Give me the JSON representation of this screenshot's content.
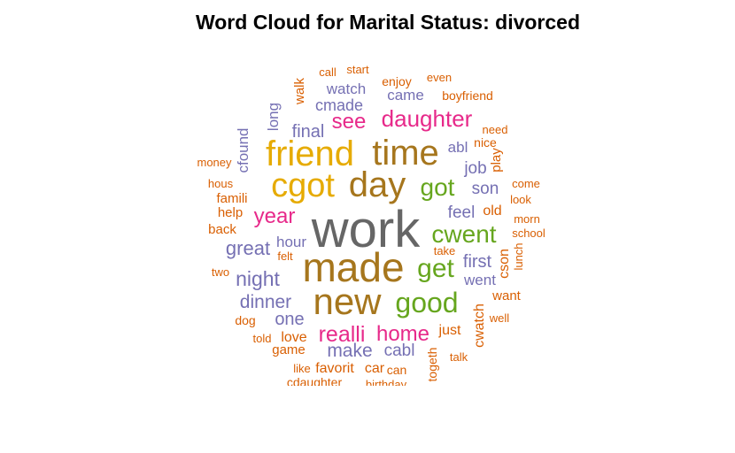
{
  "title": "Word Cloud for Marital Status: divorced",
  "colors": {
    "orange": "#D95F02",
    "purple": "#7570B3",
    "magenta": "#E7298A",
    "green": "#66A61E",
    "gold": "#E6AB02",
    "brown": "#A6761D",
    "gray": "#666666"
  },
  "chart_data": {
    "type": "wordcloud",
    "title": "Word Cloud for Marital Status: divorced",
    "words": [
      {
        "text": "work",
        "weight": 10,
        "color": "gray"
      },
      {
        "text": "made",
        "weight": 8.5,
        "color": "brown"
      },
      {
        "text": "new",
        "weight": 7.8,
        "color": "brown"
      },
      {
        "text": "day",
        "weight": 7,
        "color": "brown"
      },
      {
        "text": "time",
        "weight": 7,
        "color": "brown"
      },
      {
        "text": "friend",
        "weight": 7,
        "color": "gold"
      },
      {
        "text": "cgot",
        "weight": 7,
        "color": "gold"
      },
      {
        "text": "good",
        "weight": 5.7,
        "color": "green"
      },
      {
        "text": "cwent",
        "weight": 5.2,
        "color": "green"
      },
      {
        "text": "get",
        "weight": 5.2,
        "color": "green"
      },
      {
        "text": "got",
        "weight": 5,
        "color": "green"
      },
      {
        "text": "daughter",
        "weight": 4.7,
        "color": "magenta"
      },
      {
        "text": "realli",
        "weight": 4.5,
        "color": "magenta"
      },
      {
        "text": "home",
        "weight": 4.3,
        "color": "magenta"
      },
      {
        "text": "year",
        "weight": 4.3,
        "color": "magenta"
      },
      {
        "text": "see",
        "weight": 4,
        "color": "magenta"
      },
      {
        "text": "night",
        "weight": 4,
        "color": "purple"
      },
      {
        "text": "great",
        "weight": 4,
        "color": "purple"
      },
      {
        "text": "dinner",
        "weight": 3.7,
        "color": "purple"
      },
      {
        "text": "make",
        "weight": 3.7,
        "color": "purple"
      },
      {
        "text": "first",
        "weight": 3.5,
        "color": "purple"
      },
      {
        "text": "final",
        "weight": 3.5,
        "color": "purple"
      },
      {
        "text": "one",
        "weight": 3.5,
        "color": "purple"
      },
      {
        "text": "feel",
        "weight": 3.2,
        "color": "purple"
      },
      {
        "text": "son",
        "weight": 3.2,
        "color": "purple"
      },
      {
        "text": "job",
        "weight": 3.2,
        "color": "purple"
      },
      {
        "text": "cabl",
        "weight": 3.2,
        "color": "purple"
      },
      {
        "text": "cmade",
        "weight": 3.2,
        "color": "purple"
      },
      {
        "text": "hour",
        "weight": 3,
        "color": "purple"
      },
      {
        "text": "went",
        "weight": 3,
        "color": "purple"
      },
      {
        "text": "came",
        "weight": 3,
        "color": "purple"
      },
      {
        "text": "watch",
        "weight": 3,
        "color": "purple"
      },
      {
        "text": "abl",
        "weight": 3,
        "color": "purple"
      },
      {
        "text": "long",
        "weight": 3,
        "color": "purple"
      },
      {
        "text": "cfound",
        "weight": 3,
        "color": "purple"
      },
      {
        "text": "old",
        "weight": 2.7,
        "color": "orange"
      },
      {
        "text": "just",
        "weight": 2.7,
        "color": "orange"
      },
      {
        "text": "love",
        "weight": 2.7,
        "color": "orange"
      },
      {
        "text": "favorit",
        "weight": 2.7,
        "color": "orange"
      },
      {
        "text": "car",
        "weight": 2.7,
        "color": "orange"
      },
      {
        "text": "cwatch",
        "weight": 2.7,
        "color": "orange"
      },
      {
        "text": "cson",
        "weight": 2.5,
        "color": "orange"
      },
      {
        "text": "play",
        "weight": 2.5,
        "color": "orange"
      },
      {
        "text": "walk",
        "weight": 2.5,
        "color": "orange"
      },
      {
        "text": "game",
        "weight": 2.5,
        "color": "orange"
      },
      {
        "text": "want",
        "weight": 2.5,
        "color": "orange"
      },
      {
        "text": "famili",
        "weight": 2.5,
        "color": "orange"
      },
      {
        "text": "help",
        "weight": 2.5,
        "color": "orange"
      },
      {
        "text": "back",
        "weight": 2.5,
        "color": "orange"
      },
      {
        "text": "nice",
        "weight": 2.3,
        "color": "orange"
      },
      {
        "text": "cdaughter",
        "weight": 2.3,
        "color": "orange"
      },
      {
        "text": "togeth",
        "weight": 2.3,
        "color": "orange"
      },
      {
        "text": "dog",
        "weight": 2.3,
        "color": "orange"
      },
      {
        "text": "enjoy",
        "weight": 2.3,
        "color": "orange"
      },
      {
        "text": "boyfriend",
        "weight": 2.3,
        "color": "orange"
      },
      {
        "text": "can",
        "weight": 2.3,
        "color": "orange"
      },
      {
        "text": "like",
        "weight": 2.2,
        "color": "orange"
      },
      {
        "text": "hous",
        "weight": 2.2,
        "color": "orange"
      },
      {
        "text": "look",
        "weight": 2.2,
        "color": "orange"
      },
      {
        "text": "school",
        "weight": 2.2,
        "color": "orange"
      },
      {
        "text": "well",
        "weight": 2.2,
        "color": "orange"
      },
      {
        "text": "talk",
        "weight": 2.1,
        "color": "orange"
      },
      {
        "text": "told",
        "weight": 2.1,
        "color": "orange"
      },
      {
        "text": "felt",
        "weight": 2.1,
        "color": "orange"
      },
      {
        "text": "take",
        "weight": 2.1,
        "color": "orange"
      },
      {
        "text": "morn",
        "weight": 2.1,
        "color": "orange"
      },
      {
        "text": "come",
        "weight": 2.1,
        "color": "orange"
      },
      {
        "text": "need",
        "weight": 2.1,
        "color": "orange"
      },
      {
        "text": "money",
        "weight": 2.1,
        "color": "orange"
      },
      {
        "text": "two",
        "weight": 2.1,
        "color": "orange"
      },
      {
        "text": "lunch",
        "weight": 2.1,
        "color": "orange"
      },
      {
        "text": "call",
        "weight": 2.1,
        "color": "orange"
      },
      {
        "text": "even",
        "weight": 2.1,
        "color": "orange"
      },
      {
        "text": "start",
        "weight": 2,
        "color": "orange"
      },
      {
        "text": "birthday",
        "weight": 2,
        "color": "orange"
      }
    ]
  }
}
